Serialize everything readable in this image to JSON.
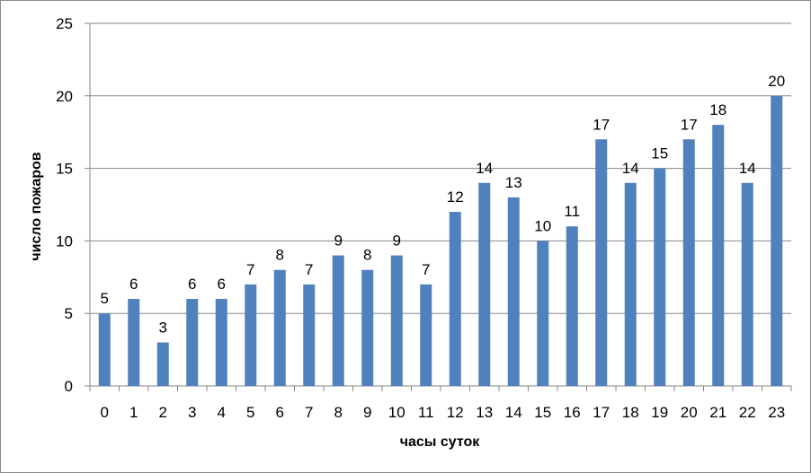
{
  "chart_data": {
    "type": "bar",
    "categories": [
      "0",
      "1",
      "2",
      "3",
      "4",
      "5",
      "6",
      "7",
      "8",
      "9",
      "10",
      "11",
      "12",
      "13",
      "14",
      "15",
      "16",
      "17",
      "18",
      "19",
      "20",
      "21",
      "22",
      "23"
    ],
    "values": [
      5,
      6,
      3,
      6,
      6,
      7,
      8,
      7,
      9,
      8,
      9,
      7,
      12,
      14,
      13,
      10,
      11,
      17,
      14,
      15,
      17,
      18,
      14,
      20
    ],
    "xlabel": "часы суток",
    "ylabel": "число пожаров",
    "ylim": [
      0,
      25
    ],
    "yticks": [
      0,
      5,
      10,
      15,
      20,
      25
    ],
    "grid": true,
    "data_labels": true,
    "bar_color": "#4f81bd",
    "grid_color": "#868686"
  }
}
